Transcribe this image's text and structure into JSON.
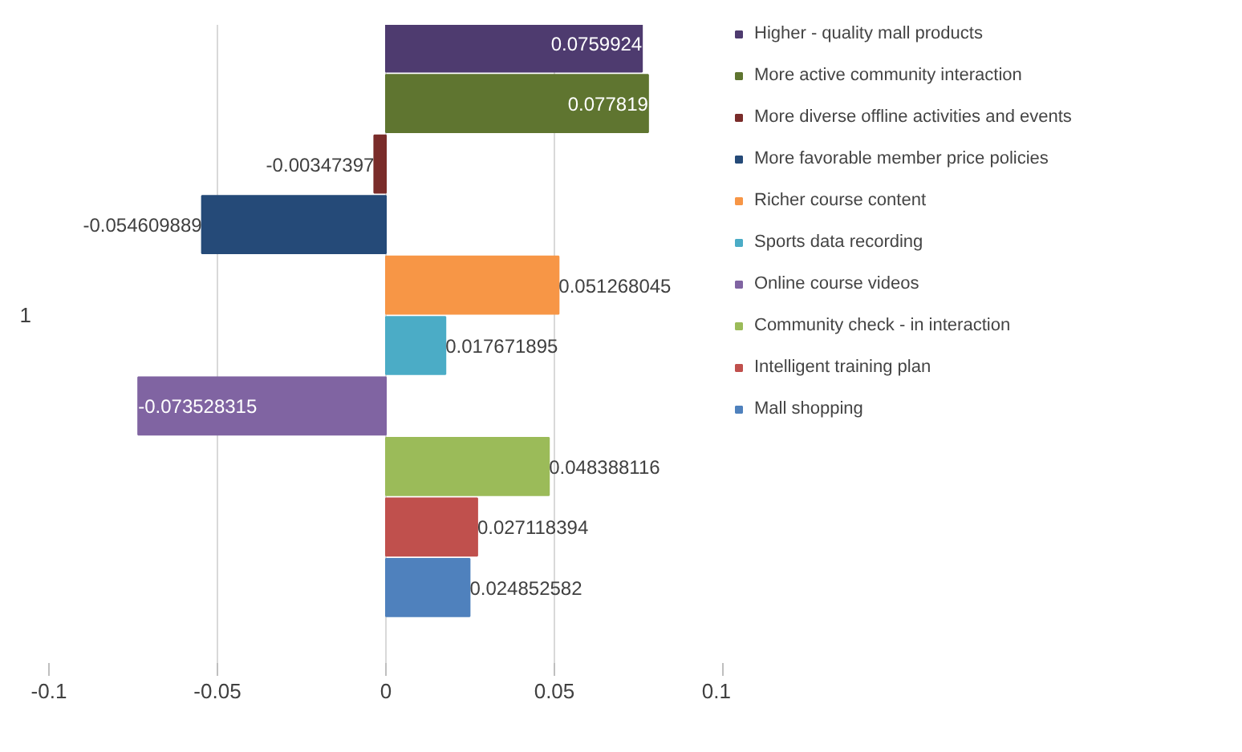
{
  "chart_data": {
    "type": "bar",
    "orientation": "horizontal",
    "categories": [
      "1"
    ],
    "series": [
      {
        "name": "Higher - quality mall products",
        "color": "#4e3b6f",
        "values": [
          0.0759924
        ],
        "value_labels": [
          "0.0759924"
        ]
      },
      {
        "name": "More active community interaction",
        "color": "#5f7530",
        "values": [
          0.077819
        ],
        "value_labels": [
          "0.077819"
        ]
      },
      {
        "name": "More diverse offline activities and events",
        "color": "#7a2c2a",
        "values": [
          -0.00347397
        ],
        "value_labels": [
          "-0.00347397"
        ]
      },
      {
        "name": "More favorable member price policies",
        "color": "#254a78",
        "values": [
          -0.054609889
        ],
        "value_labels": [
          "-0.054609889"
        ]
      },
      {
        "name": "Richer course content",
        "color": "#f79646",
        "values": [
          0.051268045
        ],
        "value_labels": [
          "0.051268045"
        ]
      },
      {
        "name": "Sports data recording",
        "color": "#4bacc6",
        "values": [
          0.017671895
        ],
        "value_labels": [
          "0.017671895"
        ]
      },
      {
        "name": "Online course videos",
        "color": "#8064a2",
        "values": [
          -0.073528315
        ],
        "value_labels": [
          "-0.073528315"
        ]
      },
      {
        "name": "Community check - in interaction",
        "color": "#9bbb59",
        "values": [
          0.048388116
        ],
        "value_labels": [
          "0.048388116"
        ]
      },
      {
        "name": "Intelligent training plan",
        "color": "#c0504d",
        "values": [
          0.027118394
        ],
        "value_labels": [
          "0.027118394"
        ]
      },
      {
        "name": "Mall shopping",
        "color": "#4f81bd",
        "values": [
          0.024852582
        ],
        "value_labels": [
          "0.024852582"
        ]
      }
    ],
    "xlim": [
      -0.1,
      0.1
    ],
    "xticks": [
      -0.1,
      -0.05,
      0,
      0.05,
      0.1
    ],
    "grid": "x",
    "legend": "right"
  }
}
